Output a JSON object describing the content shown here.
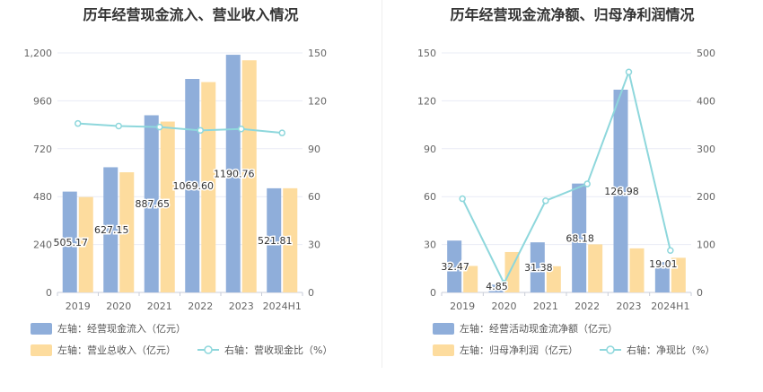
{
  "colors": {
    "bar1": "#8FAEDA",
    "bar2": "#FDDC9E",
    "line": "#8ED7DC",
    "grid": "#E9ECF5",
    "axis": "#C9CDD8"
  },
  "chart_data": [
    {
      "type": "bar+line",
      "title": "历年经营现金流入、营业收入情况",
      "categories": [
        "2019",
        "2020",
        "2021",
        "2022",
        "2023",
        "2024H1"
      ],
      "left_axis": {
        "min": 0,
        "max": 1200,
        "ticks": [
          "0",
          "240",
          "480",
          "720",
          "960",
          "1,200"
        ]
      },
      "right_axis": {
        "min": 0,
        "max": 150,
        "ticks": [
          "0",
          "30",
          "60",
          "90",
          "120",
          "150"
        ]
      },
      "series": [
        {
          "name": "左轴：经营现金流入（亿元）",
          "type": "bar",
          "axis": "left",
          "values": [
            505.17,
            627.15,
            887.65,
            1069.6,
            1190.76,
            521.81
          ],
          "labels": [
            "505.17",
            "627.15",
            "887.65",
            "1069.60",
            "1190.76",
            "521.81"
          ]
        },
        {
          "name": "左轴：营业总收入（亿元）",
          "type": "bar",
          "axis": "left",
          "values": [
            478,
            602,
            856,
            1054,
            1163,
            522
          ]
        },
        {
          "name": "右轴：营收现金比（%）",
          "type": "line",
          "axis": "right",
          "values": [
            105.8,
            104.2,
            103.6,
            101.5,
            102.4,
            99.9
          ]
        }
      ]
    },
    {
      "type": "bar+line",
      "title": "历年经营现金流净额、归母净利润情况",
      "categories": [
        "2019",
        "2020",
        "2021",
        "2022",
        "2023",
        "2024H1"
      ],
      "left_axis": {
        "min": 0,
        "max": 150,
        "ticks": [
          "0",
          "30",
          "60",
          "90",
          "120",
          "150"
        ]
      },
      "right_axis": {
        "min": 0,
        "max": 500,
        "ticks": [
          "0",
          "100",
          "200",
          "300",
          "400",
          "500"
        ]
      },
      "series": [
        {
          "name": "左轴：经营活动现金流净额（亿元）",
          "type": "bar",
          "axis": "left",
          "values": [
            32.47,
            4.85,
            31.38,
            68.18,
            126.98,
            19.01
          ],
          "labels": [
            "32.47",
            "4.85",
            "31.38",
            "68.18",
            "126.98",
            "19.01"
          ]
        },
        {
          "name": "左轴：归母净利润（亿元）",
          "type": "bar",
          "axis": "left",
          "values": [
            16.6,
            25.3,
            16.4,
            30.1,
            27.6,
            21.7
          ]
        },
        {
          "name": "右轴：净现比（%）",
          "type": "line",
          "axis": "right",
          "values": [
            195.6,
            19.2,
            191.3,
            226.5,
            460.1,
            87.6
          ]
        }
      ]
    }
  ]
}
